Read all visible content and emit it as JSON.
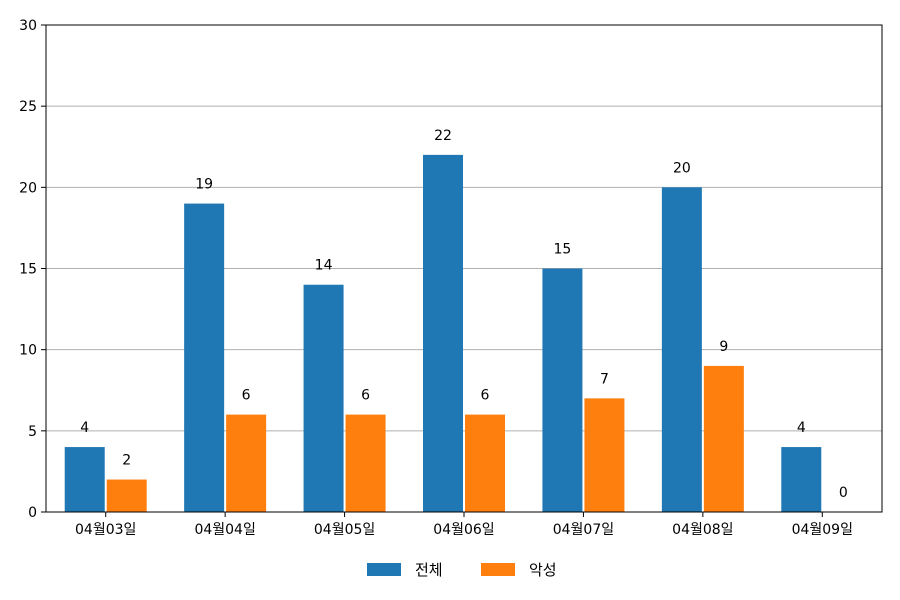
{
  "chart_data": {
    "type": "bar",
    "categories": [
      "04월03일",
      "04월04일",
      "04월05일",
      "04월06일",
      "04월07일",
      "04월08일",
      "04월09일"
    ],
    "series": [
      {
        "name": "전체",
        "values": [
          4,
          19,
          14,
          22,
          15,
          20,
          4
        ],
        "color": "#1f77b4"
      },
      {
        "name": "악성",
        "values": [
          2,
          6,
          6,
          6,
          7,
          9,
          0
        ],
        "color": "#ff7f0e"
      }
    ],
    "ylim": [
      0,
      30
    ],
    "yticks": [
      0,
      5,
      10,
      15,
      20,
      25,
      30
    ],
    "grid": "horizontal",
    "legend": "bottom-center",
    "data_labels": true
  }
}
